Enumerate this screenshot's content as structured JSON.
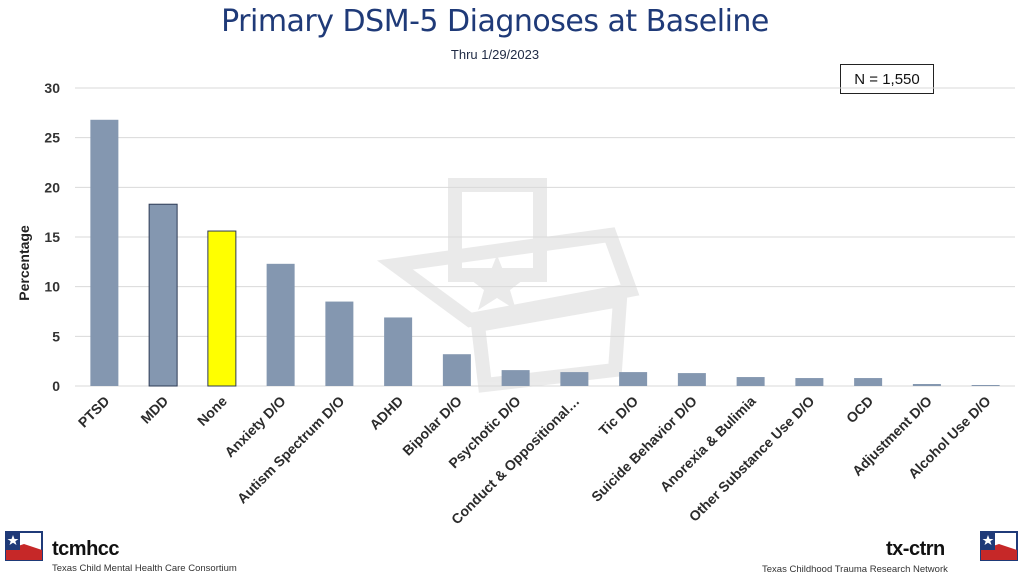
{
  "header": {
    "title": "Primary DSM-5 Diagnoses at Baseline",
    "subtitle": "Thru 1/29/2023",
    "n_label": "N = 1,550"
  },
  "chart_data": {
    "type": "bar",
    "title": "Primary DSM-5 Diagnoses at Baseline",
    "subtitle": "Thru 1/29/2023",
    "ylabel": "Percentage",
    "xlabel": "",
    "ylim": [
      0,
      30
    ],
    "yticks": [
      0,
      5,
      10,
      15,
      20,
      25,
      30
    ],
    "grid": true,
    "categories": [
      "PTSD",
      "MDD",
      "None",
      "Anxiety D/O",
      "Autism Spectrum D/O",
      "ADHD",
      "Bipolar D/O",
      "Psychotic D/O",
      "Conduct & Oppositional…",
      "Tic D/O",
      "Suicide Behavior D/O",
      "Anorexia & Bulimia",
      "Other Substance Use D/O",
      "OCD",
      "Adjustment D/O",
      "Alcohol Use D/O"
    ],
    "values": [
      26.8,
      18.3,
      15.6,
      12.3,
      8.5,
      6.9,
      3.2,
      1.6,
      1.4,
      1.4,
      1.3,
      0.9,
      0.8,
      0.8,
      0.2,
      0.1
    ],
    "colors": {
      "default": "#8497b0",
      "highlight": "#ffff00",
      "highlight_category": "None",
      "grid": "#d9d9d9"
    }
  },
  "footer": {
    "left_logo_name": "tcmhcc",
    "left_logo_sub": "Texas Child Mental Health Care Consortium",
    "right_logo_name": "tx-ctrn",
    "right_logo_sub": "Texas Childhood Trauma Research Network"
  }
}
